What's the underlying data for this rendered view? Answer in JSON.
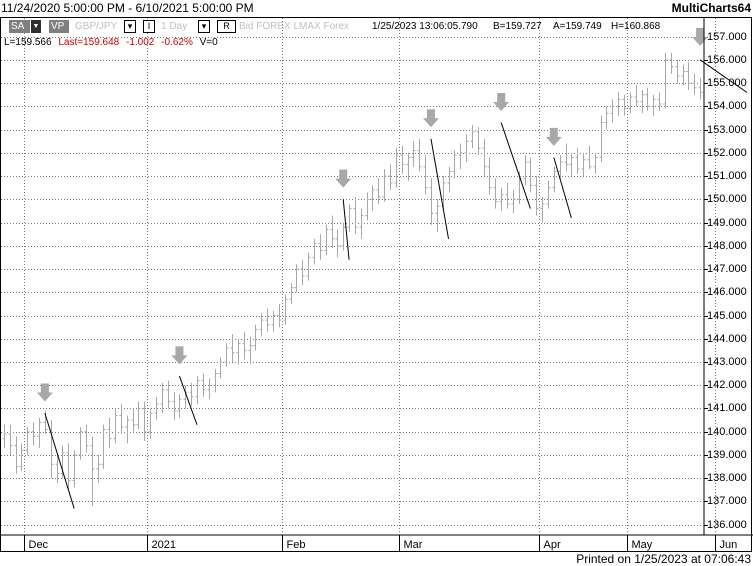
{
  "header": {
    "range": "11/24/2020 5:00:00 PM - 6/10/2021 5:00:00 PM",
    "app_name": "MultiCharts64"
  },
  "toolbar": {
    "sa_label": "SA",
    "vp_label": "VP",
    "symbol": "GBP/JPY",
    "interval": "1 Day",
    "r_label": "R",
    "feed": "Bid  FOREX  LMAX  Forex",
    "datetime": "1/25/2023   13:06:05.790",
    "bid": "B=159.727",
    "ask": "A=159.749",
    "high": "H=160.868",
    "i_label": "I"
  },
  "status": {
    "low": "L=159.566",
    "last": "Last=159.648",
    "change": "-1.002",
    "change_pct": "-0.62%",
    "volume": "V=0"
  },
  "footer": {
    "printed": "Printed on 1/25/2023 at 07:06:43"
  },
  "colors": {
    "bar": "#a8a8a8",
    "trend_line": "#000000",
    "arrow": "#a8a8a8",
    "grid": "#7a7a7a",
    "negative": "#d00000"
  },
  "chart_data": {
    "type": "ohlc",
    "y_range": [
      135.6,
      157.8
    ],
    "y_ticks": [
      "136.000",
      "137.000",
      "138.000",
      "139.000",
      "140.000",
      "141.000",
      "142.000",
      "143.000",
      "144.000",
      "145.000",
      "146.000",
      "147.000",
      "148.000",
      "149.000",
      "150.000",
      "151.000",
      "152.000",
      "153.000",
      "154.000",
      "155.000",
      "156.000",
      "157.000"
    ],
    "x_labels": [
      "Dec",
      "2021",
      "Feb",
      "Mar",
      "Apr",
      "May",
      "Jun"
    ],
    "grid": "dotted",
    "bars": [
      {
        "o": 139.7,
        "h": 140.3,
        "l": 139.3,
        "c": 139.9
      },
      {
        "o": 139.9,
        "h": 140.3,
        "l": 139.0,
        "c": 139.4
      },
      {
        "o": 139.4,
        "h": 139.8,
        "l": 138.2,
        "c": 138.5
      },
      {
        "o": 138.5,
        "h": 139.5,
        "l": 138.3,
        "c": 139.2
      },
      {
        "o": 139.2,
        "h": 140.2,
        "l": 139.0,
        "c": 140.0
      },
      {
        "o": 140.0,
        "h": 140.4,
        "l": 139.4,
        "c": 139.8
      },
      {
        "o": 139.8,
        "h": 140.6,
        "l": 139.3,
        "c": 140.4
      },
      {
        "o": 140.4,
        "h": 140.9,
        "l": 139.9,
        "c": 140.1
      },
      {
        "o": 140.1,
        "h": 140.5,
        "l": 138.0,
        "c": 138.6
      },
      {
        "o": 138.6,
        "h": 139.0,
        "l": 137.8,
        "c": 138.2
      },
      {
        "o": 138.2,
        "h": 139.4,
        "l": 138.0,
        "c": 139.1
      },
      {
        "o": 139.1,
        "h": 139.5,
        "l": 137.5,
        "c": 137.9
      },
      {
        "o": 137.9,
        "h": 139.2,
        "l": 137.6,
        "c": 139.0
      },
      {
        "o": 139.0,
        "h": 140.2,
        "l": 138.8,
        "c": 140.0
      },
      {
        "o": 140.0,
        "h": 140.3,
        "l": 139.1,
        "c": 139.4
      },
      {
        "o": 139.4,
        "h": 139.8,
        "l": 136.8,
        "c": 138.4
      },
      {
        "o": 138.4,
        "h": 139.0,
        "l": 137.8,
        "c": 138.6
      },
      {
        "o": 138.6,
        "h": 140.3,
        "l": 138.4,
        "c": 140.1
      },
      {
        "o": 140.1,
        "h": 140.6,
        "l": 139.3,
        "c": 139.7
      },
      {
        "o": 139.7,
        "h": 141.0,
        "l": 139.5,
        "c": 140.7
      },
      {
        "o": 140.7,
        "h": 141.2,
        "l": 139.9,
        "c": 140.2
      },
      {
        "o": 140.2,
        "h": 140.7,
        "l": 139.5,
        "c": 140.5
      },
      {
        "o": 140.5,
        "h": 141.0,
        "l": 140.0,
        "c": 140.3
      },
      {
        "o": 140.3,
        "h": 141.3,
        "l": 140.1,
        "c": 141.0
      },
      {
        "o": 141.0,
        "h": 141.3,
        "l": 139.6,
        "c": 140.0
      },
      {
        "o": 140.0,
        "h": 141.0,
        "l": 139.7,
        "c": 140.8
      },
      {
        "o": 140.8,
        "h": 141.5,
        "l": 140.5,
        "c": 141.2
      },
      {
        "o": 141.2,
        "h": 142.1,
        "l": 140.8,
        "c": 141.8
      },
      {
        "o": 141.8,
        "h": 142.2,
        "l": 141.0,
        "c": 141.3
      },
      {
        "o": 141.3,
        "h": 141.7,
        "l": 140.5,
        "c": 140.9
      },
      {
        "o": 140.9,
        "h": 141.6,
        "l": 140.6,
        "c": 141.4
      },
      {
        "o": 141.4,
        "h": 142.0,
        "l": 141.0,
        "c": 141.7
      },
      {
        "o": 141.7,
        "h": 142.1,
        "l": 141.1,
        "c": 141.5
      },
      {
        "o": 141.5,
        "h": 142.4,
        "l": 141.2,
        "c": 142.2
      },
      {
        "o": 142.2,
        "h": 142.5,
        "l": 141.5,
        "c": 141.8
      },
      {
        "o": 141.8,
        "h": 142.3,
        "l": 141.4,
        "c": 142.0
      },
      {
        "o": 142.0,
        "h": 142.7,
        "l": 141.7,
        "c": 142.5
      },
      {
        "o": 142.5,
        "h": 143.2,
        "l": 142.3,
        "c": 143.0
      },
      {
        "o": 143.0,
        "h": 143.8,
        "l": 142.8,
        "c": 143.6
      },
      {
        "o": 143.6,
        "h": 144.2,
        "l": 143.0,
        "c": 143.4
      },
      {
        "o": 143.4,
        "h": 144.0,
        "l": 142.9,
        "c": 143.8
      },
      {
        "o": 143.8,
        "h": 144.3,
        "l": 143.1,
        "c": 143.5
      },
      {
        "o": 143.5,
        "h": 144.1,
        "l": 142.9,
        "c": 143.7
      },
      {
        "o": 143.7,
        "h": 144.6,
        "l": 143.5,
        "c": 144.4
      },
      {
        "o": 144.4,
        "h": 145.1,
        "l": 144.1,
        "c": 144.8
      },
      {
        "o": 144.8,
        "h": 145.3,
        "l": 144.3,
        "c": 144.6
      },
      {
        "o": 144.6,
        "h": 145.2,
        "l": 144.3,
        "c": 145.0
      },
      {
        "o": 145.0,
        "h": 145.5,
        "l": 144.5,
        "c": 144.8
      },
      {
        "o": 144.8,
        "h": 145.9,
        "l": 144.6,
        "c": 145.7
      },
      {
        "o": 145.7,
        "h": 146.4,
        "l": 145.5,
        "c": 146.2
      },
      {
        "o": 146.2,
        "h": 147.2,
        "l": 146.0,
        "c": 147.0
      },
      {
        "o": 147.0,
        "h": 147.4,
        "l": 146.3,
        "c": 146.7
      },
      {
        "o": 146.7,
        "h": 147.7,
        "l": 146.5,
        "c": 147.5
      },
      {
        "o": 147.5,
        "h": 148.3,
        "l": 147.2,
        "c": 148.1
      },
      {
        "o": 148.1,
        "h": 148.5,
        "l": 147.4,
        "c": 147.8
      },
      {
        "o": 147.8,
        "h": 148.9,
        "l": 147.6,
        "c": 148.7
      },
      {
        "o": 148.7,
        "h": 149.3,
        "l": 147.9,
        "c": 148.3
      },
      {
        "o": 148.3,
        "h": 148.7,
        "l": 147.5,
        "c": 148.0
      },
      {
        "o": 148.0,
        "h": 149.0,
        "l": 147.8,
        "c": 148.8
      },
      {
        "o": 148.8,
        "h": 149.8,
        "l": 148.6,
        "c": 149.6
      },
      {
        "o": 149.6,
        "h": 150.1,
        "l": 148.5,
        "c": 148.8
      },
      {
        "o": 148.8,
        "h": 149.6,
        "l": 148.3,
        "c": 149.3
      },
      {
        "o": 149.3,
        "h": 150.3,
        "l": 149.1,
        "c": 150.0
      },
      {
        "o": 150.0,
        "h": 150.6,
        "l": 149.5,
        "c": 150.4
      },
      {
        "o": 150.4,
        "h": 150.9,
        "l": 149.8,
        "c": 150.1
      },
      {
        "o": 150.1,
        "h": 151.3,
        "l": 149.9,
        "c": 151.0
      },
      {
        "o": 151.0,
        "h": 151.5,
        "l": 150.4,
        "c": 150.7
      },
      {
        "o": 150.7,
        "h": 152.2,
        "l": 150.5,
        "c": 151.9
      },
      {
        "o": 151.9,
        "h": 152.3,
        "l": 151.1,
        "c": 151.5
      },
      {
        "o": 151.5,
        "h": 152.0,
        "l": 150.8,
        "c": 151.8
      },
      {
        "o": 151.8,
        "h": 152.5,
        "l": 151.4,
        "c": 152.1
      },
      {
        "o": 152.1,
        "h": 152.6,
        "l": 151.2,
        "c": 151.4
      },
      {
        "o": 151.4,
        "h": 151.9,
        "l": 150.2,
        "c": 150.5
      },
      {
        "o": 150.5,
        "h": 150.9,
        "l": 148.9,
        "c": 149.4
      },
      {
        "o": 149.4,
        "h": 150.0,
        "l": 148.6,
        "c": 149.7
      },
      {
        "o": 149.7,
        "h": 151.0,
        "l": 149.5,
        "c": 150.7
      },
      {
        "o": 150.7,
        "h": 151.4,
        "l": 150.3,
        "c": 151.2
      },
      {
        "o": 151.2,
        "h": 152.1,
        "l": 150.9,
        "c": 151.9
      },
      {
        "o": 151.9,
        "h": 152.4,
        "l": 151.3,
        "c": 152.0
      },
      {
        "o": 152.0,
        "h": 152.8,
        "l": 151.6,
        "c": 152.5
      },
      {
        "o": 152.5,
        "h": 153.2,
        "l": 152.2,
        "c": 152.9
      },
      {
        "o": 152.9,
        "h": 153.1,
        "l": 151.9,
        "c": 152.2
      },
      {
        "o": 152.2,
        "h": 152.6,
        "l": 151.0,
        "c": 151.4
      },
      {
        "o": 151.4,
        "h": 151.8,
        "l": 150.2,
        "c": 150.5
      },
      {
        "o": 150.5,
        "h": 150.9,
        "l": 149.6,
        "c": 149.9
      },
      {
        "o": 149.9,
        "h": 150.5,
        "l": 149.5,
        "c": 150.2
      },
      {
        "o": 150.2,
        "h": 150.7,
        "l": 149.6,
        "c": 149.8
      },
      {
        "o": 149.8,
        "h": 150.4,
        "l": 149.4,
        "c": 150.0
      },
      {
        "o": 150.0,
        "h": 151.2,
        "l": 149.8,
        "c": 150.9
      },
      {
        "o": 150.9,
        "h": 151.9,
        "l": 150.6,
        "c": 151.6
      },
      {
        "o": 151.6,
        "h": 151.8,
        "l": 150.3,
        "c": 150.6
      },
      {
        "o": 150.6,
        "h": 151.0,
        "l": 149.3,
        "c": 149.6
      },
      {
        "o": 149.6,
        "h": 150.1,
        "l": 149.0,
        "c": 149.8
      },
      {
        "o": 149.8,
        "h": 150.8,
        "l": 149.6,
        "c": 150.5
      },
      {
        "o": 150.5,
        "h": 151.4,
        "l": 150.3,
        "c": 151.2
      },
      {
        "o": 151.2,
        "h": 151.9,
        "l": 150.9,
        "c": 151.6
      },
      {
        "o": 151.6,
        "h": 152.4,
        "l": 151.2,
        "c": 151.5
      },
      {
        "o": 151.5,
        "h": 152.0,
        "l": 151.0,
        "c": 151.8
      },
      {
        "o": 151.8,
        "h": 152.2,
        "l": 151.1,
        "c": 151.3
      },
      {
        "o": 151.3,
        "h": 152.0,
        "l": 151.0,
        "c": 151.7
      },
      {
        "o": 151.7,
        "h": 152.3,
        "l": 151.3,
        "c": 151.4
      },
      {
        "o": 151.4,
        "h": 152.0,
        "l": 151.1,
        "c": 151.8
      },
      {
        "o": 151.8,
        "h": 153.6,
        "l": 151.6,
        "c": 153.3
      },
      {
        "o": 153.3,
        "h": 154.0,
        "l": 153.0,
        "c": 153.7
      },
      {
        "o": 153.7,
        "h": 154.3,
        "l": 153.3,
        "c": 154.0
      },
      {
        "o": 154.0,
        "h": 154.6,
        "l": 153.6,
        "c": 154.3
      },
      {
        "o": 154.3,
        "h": 154.5,
        "l": 153.6,
        "c": 153.9
      },
      {
        "o": 153.9,
        "h": 154.6,
        "l": 153.7,
        "c": 154.4
      },
      {
        "o": 154.4,
        "h": 154.9,
        "l": 154.0,
        "c": 154.2
      },
      {
        "o": 154.2,
        "h": 154.7,
        "l": 153.7,
        "c": 154.5
      },
      {
        "o": 154.5,
        "h": 154.8,
        "l": 153.8,
        "c": 154.0
      },
      {
        "o": 154.0,
        "h": 154.5,
        "l": 153.6,
        "c": 154.3
      },
      {
        "o": 154.3,
        "h": 154.6,
        "l": 153.8,
        "c": 154.1
      },
      {
        "o": 154.1,
        "h": 156.3,
        "l": 153.9,
        "c": 156.0
      },
      {
        "o": 156.0,
        "h": 156.3,
        "l": 155.4,
        "c": 155.7
      },
      {
        "o": 155.7,
        "h": 156.0,
        "l": 155.0,
        "c": 155.3
      },
      {
        "o": 155.3,
        "h": 155.8,
        "l": 154.9,
        "c": 155.5
      },
      {
        "o": 155.5,
        "h": 155.9,
        "l": 154.7,
        "c": 155.0
      },
      {
        "o": 155.0,
        "h": 155.4,
        "l": 154.5,
        "c": 154.8
      },
      {
        "o": 154.8,
        "h": 155.2,
        "l": 154.3,
        "c": 154.6
      }
    ],
    "trend_lines": [
      {
        "from": {
          "bar": 7,
          "price": 140.8
        },
        "to": {
          "bar": 12,
          "price": 136.7
        }
      },
      {
        "from": {
          "bar": 30,
          "price": 142.4
        },
        "to": {
          "bar": 33,
          "price": 140.3
        }
      },
      {
        "from": {
          "bar": 58,
          "price": 150.0
        },
        "to": {
          "bar": 59,
          "price": 147.4
        }
      },
      {
        "from": {
          "bar": 73,
          "price": 152.6
        },
        "to": {
          "bar": 76,
          "price": 148.3
        }
      },
      {
        "from": {
          "bar": 85,
          "price": 153.3
        },
        "to": {
          "bar": 90,
          "price": 149.6
        }
      },
      {
        "from": {
          "bar": 94,
          "price": 151.8
        },
        "to": {
          "bar": 97,
          "price": 149.2
        }
      },
      {
        "from": {
          "bar": 119,
          "price": 156.0
        },
        "to": {
          "bar": 127,
          "price": 154.6
        }
      }
    ],
    "arrows": [
      {
        "bar": 7,
        "price": 141.3
      },
      {
        "bar": 30,
        "price": 142.9
      },
      {
        "bar": 58,
        "price": 150.5
      },
      {
        "bar": 73,
        "price": 153.1
      },
      {
        "bar": 85,
        "price": 153.8
      },
      {
        "bar": 94,
        "price": 152.3
      },
      {
        "bar": 119,
        "price": 156.6
      }
    ]
  }
}
